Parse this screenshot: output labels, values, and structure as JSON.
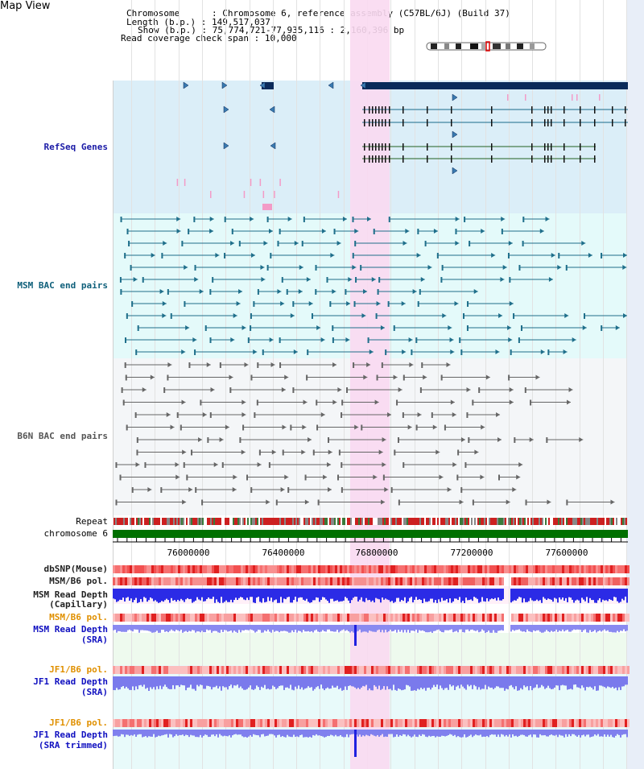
{
  "title": "Map View",
  "info": {
    "chromosome_key": "Chromosome",
    "chromosome_val": "Chromosome 6, reference assembly (C57BL/6J) (Build 37)",
    "length_key": "Length (b.p.)",
    "length_val": "149,517,037",
    "show_key": "Show (b.p.)",
    "show_val": "75,774,721-77,935,116 : 2,160,396 bp",
    "coverage_key": "Read coverage check span",
    "coverage_val": "10,000"
  },
  "tracks": {
    "refseq": "RefSeq Genes",
    "msm_bac": "MSM BAC end pairs",
    "b6n_bac": "B6N BAC end pairs",
    "repeat": "Repeat",
    "chromosome": "chromosome 6",
    "dbsnp": "dbSNP(Mouse)",
    "msm_b6_pol": "MSM/B6 pol.",
    "msm_depth_cap_1": "MSM Read Depth",
    "msm_depth_cap_2": "(Capillary)",
    "msm_b6_pol_2": "MSM/B6 pol.",
    "msm_depth_sra_1": "MSM Read Depth",
    "msm_depth_sra_2": "(SRA)",
    "jf1_b6_pol": "JF1/B6 pol.",
    "jf1_depth_sra_1": "JF1 Read Depth",
    "jf1_depth_sra_2": "(SRA)",
    "jf1_b6_pol_2": "JF1/B6 pol.",
    "jf1_depth_trim_1": "JF1 Read Depth",
    "jf1_depth_trim_2": "(SRA trimmed)"
  },
  "axis": {
    "ticks": [
      "76000000",
      "76400000",
      "76800000",
      "77200000",
      "77600000"
    ]
  },
  "colors": {
    "refseq_bg": "#dbeef8",
    "bac_bg": "#e4fafa",
    "b6n_bg": "#f4f6f8",
    "highlight": "#f9d9f1",
    "repeat_red": "#cc2020",
    "chromosome_green": "#007000",
    "depth_blue": "#2020e0",
    "gene_navy": "#0a2a5a"
  }
}
